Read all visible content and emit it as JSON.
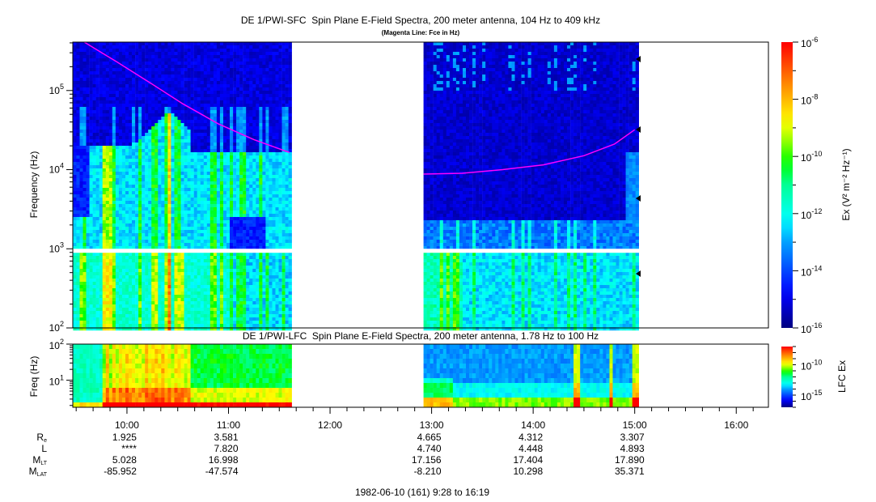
{
  "chart_data": [
    {
      "type": "heatmap",
      "title": "DE 1/PWI-SFC  Spin Plane E-Field Spectra, 200 meter antenna, 104 Hz to 409 kHz",
      "subtitle": "(Magenta Line: Fce in Hz)",
      "ylabel": "Frequency (Hz)",
      "yscale": "log",
      "ylim": [
        100,
        409000
      ],
      "yticks": [
        {
          "base": "10",
          "exp": "2"
        },
        {
          "base": "10",
          "exp": "3"
        },
        {
          "base": "10",
          "exp": "4"
        },
        {
          "base": "10",
          "exp": "5"
        }
      ],
      "data_segments_hours": [
        [
          9.47,
          11.62
        ],
        [
          12.92,
          15.03
        ]
      ],
      "missing_band_hz": [
        900,
        1000
      ],
      "colorbar": {
        "label": "Ex (V² m⁻² Hz⁻¹)",
        "label_parts": [
          "Ex (V",
          "2",
          " m",
          "-2",
          " Hz",
          "-1",
          ")"
        ],
        "log_range": [
          -16,
          -6
        ],
        "ticks": [
          {
            "base": "10",
            "exp": "-6"
          },
          {
            "base": "10",
            "exp": "-8"
          },
          {
            "base": "10",
            "exp": "-10"
          },
          {
            "base": "10",
            "exp": "-12"
          },
          {
            "base": "10",
            "exp": "-14"
          },
          {
            "base": "10",
            "exp": "-16"
          }
        ]
      },
      "fce_line": {
        "color": "#ff00ff",
        "segments": [
          [
            [
              9.58,
              409000
            ],
            [
              9.9,
              230000
            ],
            [
              10.25,
              120000
            ],
            [
              10.55,
              68000
            ],
            [
              10.9,
              38000
            ],
            [
              11.25,
              24000
            ],
            [
              11.6,
              16500
            ]
          ],
          [
            [
              12.92,
              8800
            ],
            [
              13.3,
              9000
            ],
            [
              13.7,
              10000
            ],
            [
              14.1,
              11500
            ],
            [
              14.5,
              15000
            ],
            [
              14.8,
              21000
            ],
            [
              15.0,
              32000
            ]
          ]
        ]
      }
    },
    {
      "type": "heatmap",
      "title": "DE 1/PWI-LFC  Spin Plane E-Field Spectra, 200 meter antenna, 1.78 Hz to 100 Hz",
      "ylabel": "Freq (Hz)",
      "yscale": "log",
      "ylim": [
        1.78,
        100
      ],
      "yticks": [
        {
          "base": "10",
          "exp": "1"
        },
        {
          "base": "10",
          "exp": "2"
        }
      ],
      "data_segments_hours": [
        [
          9.47,
          11.62
        ],
        [
          12.92,
          15.03
        ]
      ],
      "colorbar": {
        "label": "LFC Ex",
        "log_range": [
          -17,
          -7
        ],
        "ticks": [
          {
            "base": "10",
            "exp": "-10"
          },
          {
            "base": "10",
            "exp": "-15"
          }
        ]
      }
    }
  ],
  "time_axis": {
    "range_hours": [
      9.4667,
      16.3167
    ],
    "labels": [
      {
        "h": 10,
        "text": "10:00"
      },
      {
        "h": 11,
        "text": "11:00"
      },
      {
        "h": 12,
        "text": "12:00"
      },
      {
        "h": 13,
        "text": "13:00"
      },
      {
        "h": 14,
        "text": "14:00"
      },
      {
        "h": 15,
        "text": "15:00"
      },
      {
        "h": 16,
        "text": "16:00"
      }
    ]
  },
  "ephemeris": {
    "rows": [
      {
        "label": "R",
        "sub": "e",
        "values": {
          "10": "1.925",
          "11": "3.581",
          "13": "4.665",
          "14": "4.312",
          "15": "3.307"
        }
      },
      {
        "label": "L",
        "sub": "",
        "values": {
          "10": "****",
          "11": "7.820",
          "13": "4.740",
          "14": "4.448",
          "15": "4.893"
        }
      },
      {
        "label": "M",
        "sub": "LT",
        "values": {
          "10": "5.028",
          "11": "16.998",
          "13": "17.156",
          "14": "17.404",
          "15": "17.890"
        }
      },
      {
        "label": "M",
        "sub": "LAT",
        "values": {
          "10": "-85.952",
          "11": "-47.574",
          "13": "-8.210",
          "14": "10.298",
          "15": "35.371"
        }
      }
    ],
    "footer": "1982-06-10 (161) 9:28 to 16:19"
  }
}
